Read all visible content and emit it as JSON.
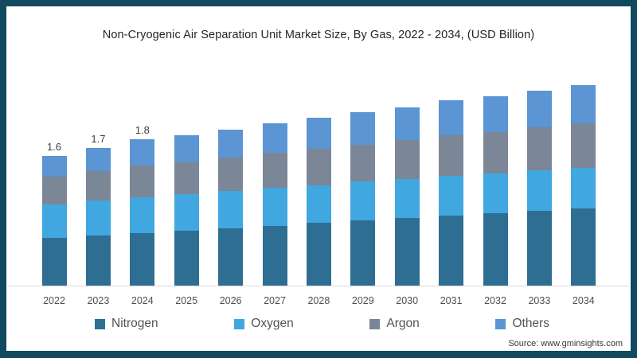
{
  "title": "Non-Cryogenic Air Separation Unit Market Size, By Gas, 2022 - 2034, (USD Billion)",
  "source": "Source: www.gminsights.com",
  "colors": {
    "frame": "#11495e",
    "axis_line": "#d9d9d9",
    "nitrogen": "#2e6e93",
    "oxygen": "#41a7e0",
    "argon": "#7b8696",
    "others": "#5b95d3"
  },
  "legend": {
    "items": [
      {
        "label": "Nitrogen",
        "color": "#2e6e93"
      },
      {
        "label": "Oxygen",
        "color": "#41a7e0"
      },
      {
        "label": "Argon",
        "color": "#7b8696"
      },
      {
        "label": "Others",
        "color": "#5b95d3"
      }
    ]
  },
  "chart_data": {
    "type": "bar",
    "stacked": true,
    "title": "Non-Cryogenic Air Separation Unit Market Size, By Gas, 2022 - 2034, (USD Billion)",
    "unit": "USD Billion",
    "xlabel": "",
    "ylabel": "",
    "ylim": [
      0,
      2.6
    ],
    "gridlines": false,
    "y_axis_shown": false,
    "legend_position": "bottom",
    "categories": [
      "2022",
      "2023",
      "2024",
      "2025",
      "2026",
      "2027",
      "2028",
      "2029",
      "2030",
      "2031",
      "2032",
      "2033",
      "2034"
    ],
    "series": [
      {
        "name": "Nitrogen",
        "color": "#2e6e93",
        "values": [
          0.59,
          0.62,
          0.65,
          0.68,
          0.71,
          0.74,
          0.77,
          0.8,
          0.83,
          0.86,
          0.89,
          0.92,
          0.95
        ]
      },
      {
        "name": "Oxygen",
        "color": "#41a7e0",
        "values": [
          0.41,
          0.43,
          0.44,
          0.45,
          0.46,
          0.47,
          0.47,
          0.48,
          0.48,
          0.49,
          0.49,
          0.5,
          0.5
        ]
      },
      {
        "name": "Argon",
        "color": "#7b8696",
        "values": [
          0.34,
          0.36,
          0.39,
          0.39,
          0.41,
          0.43,
          0.45,
          0.46,
          0.48,
          0.5,
          0.51,
          0.53,
          0.55
        ]
      },
      {
        "name": "Others",
        "color": "#5b95d3",
        "values": [
          0.26,
          0.29,
          0.32,
          0.33,
          0.34,
          0.36,
          0.38,
          0.4,
          0.41,
          0.43,
          0.44,
          0.45,
          0.47
        ]
      }
    ],
    "totals": [
      1.6,
      1.7,
      1.8,
      1.85,
      1.92,
      2.0,
      2.07,
      2.14,
      2.2,
      2.28,
      2.33,
      2.4,
      2.47
    ],
    "value_labels": [
      "1.6",
      "1.7",
      "1.8",
      "",
      "",
      "",
      "",
      "",
      "",
      "",
      "",
      "",
      ""
    ]
  }
}
